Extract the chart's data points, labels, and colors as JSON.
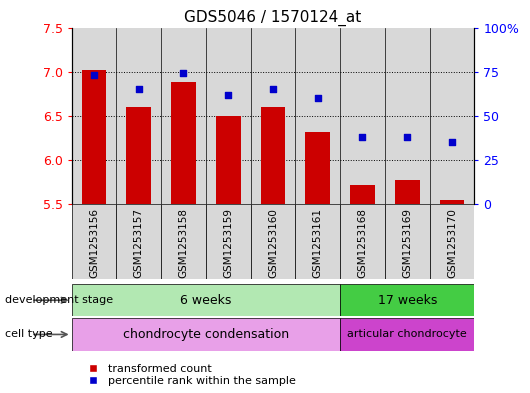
{
  "title": "GDS5046 / 1570124_at",
  "samples": [
    "GSM1253156",
    "GSM1253157",
    "GSM1253158",
    "GSM1253159",
    "GSM1253160",
    "GSM1253161",
    "GSM1253168",
    "GSM1253169",
    "GSM1253170"
  ],
  "transformed_counts": [
    7.02,
    6.6,
    6.88,
    6.5,
    6.6,
    6.32,
    5.72,
    5.77,
    5.55
  ],
  "percentile_ranks": [
    73,
    65,
    74,
    62,
    65,
    60,
    38,
    38,
    35
  ],
  "ylim": [
    5.5,
    7.5
  ],
  "ylim_right": [
    0,
    100
  ],
  "yticks_left": [
    5.5,
    6.0,
    6.5,
    7.0,
    7.5
  ],
  "yticks_right": [
    0,
    25,
    50,
    75,
    100
  ],
  "ytick_labels_right": [
    "0",
    "25",
    "50",
    "75",
    "100%"
  ],
  "bar_color": "#cc0000",
  "scatter_color": "#0000cc",
  "bar_bottom": 5.5,
  "group_6w_color": "#b2e8b2",
  "group_17w_color": "#44cc44",
  "cell_cond_color": "#e8a0e8",
  "cell_art_color": "#cc44cc",
  "col_bg_color": "#d8d8d8",
  "groups": [
    {
      "label": "6 weeks",
      "start": 0,
      "end": 6
    },
    {
      "label": "17 weeks",
      "start": 6,
      "end": 9
    }
  ],
  "cell_types": [
    {
      "label": "chondrocyte condensation",
      "start": 0,
      "end": 6
    },
    {
      "label": "articular chondrocyte",
      "start": 6,
      "end": 9
    }
  ],
  "dev_stage_label": "development stage",
  "cell_type_label": "cell type",
  "legend_bar_label": "transformed count",
  "legend_scatter_label": "percentile rank within the sample",
  "bar_width": 0.55,
  "gridline_values": [
    6.0,
    6.5,
    7.0
  ]
}
